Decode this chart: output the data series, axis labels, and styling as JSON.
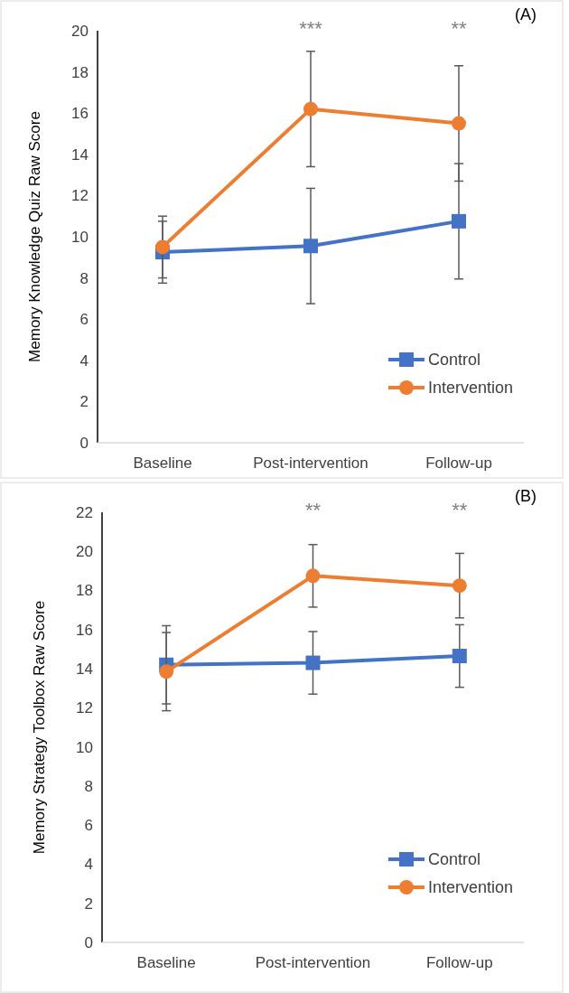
{
  "chart_data": [
    {
      "type": "line",
      "title": "(A)",
      "ylabel": "Memory Knowledge Quiz Raw Score",
      "categories": [
        "Baseline",
        "Post-intervention",
        "Follow-up"
      ],
      "series": [
        {
          "name": "Control",
          "color": "#4472c4",
          "marker": "square",
          "values": [
            9.25,
            9.55,
            10.75
          ],
          "errors": [
            1.5,
            2.8,
            2.8
          ]
        },
        {
          "name": "Intervention",
          "color": "#ed7d31",
          "marker": "circle",
          "values": [
            9.5,
            16.2,
            15.5
          ],
          "errors": [
            1.5,
            2.8,
            2.8
          ]
        }
      ],
      "ylim": [
        0,
        20
      ],
      "yticks": [
        0,
        2,
        4,
        6,
        8,
        10,
        12,
        14,
        16,
        18,
        20
      ],
      "grid": false,
      "legend": "bottom right",
      "annotations": [
        "***",
        "**"
      ]
    },
    {
      "type": "line",
      "title": "(B)",
      "ylabel": "Memory Strategy Toolbox Raw Score",
      "categories": [
        "Baseline",
        "Post-intervention",
        "Follow-up"
      ],
      "series": [
        {
          "name": "Control",
          "color": "#4472c4",
          "marker": "square",
          "values": [
            14.2,
            14.3,
            14.65
          ],
          "errors": [
            2.0,
            1.6,
            1.6
          ]
        },
        {
          "name": "Intervention",
          "color": "#ed7d31",
          "marker": "circle",
          "values": [
            13.85,
            18.75,
            18.25
          ],
          "errors": [
            2.0,
            1.6,
            1.65
          ]
        }
      ],
      "ylim": [
        0,
        22
      ],
      "yticks": [
        0,
        2,
        4,
        6,
        8,
        10,
        12,
        14,
        16,
        18,
        20,
        22
      ],
      "grid": false,
      "legend": "bottom right",
      "annotations": [
        "**",
        "**"
      ]
    }
  ]
}
